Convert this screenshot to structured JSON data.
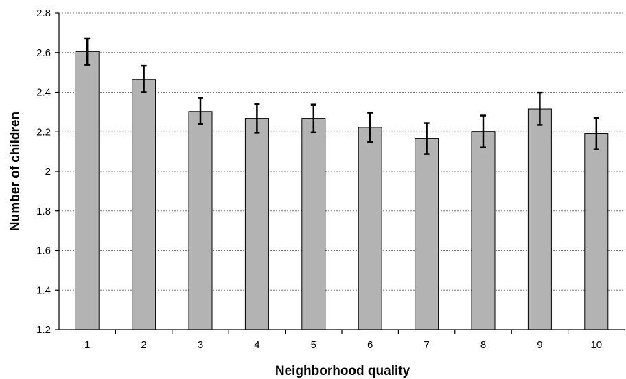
{
  "chart_data": {
    "type": "bar",
    "categories": [
      "1",
      "2",
      "3",
      "4",
      "5",
      "6",
      "7",
      "8",
      "9",
      "10"
    ],
    "values": [
      2.605,
      2.465,
      2.302,
      2.268,
      2.268,
      2.222,
      2.165,
      2.202,
      2.315,
      2.192
    ],
    "error_upper": [
      2.672,
      2.533,
      2.372,
      2.34,
      2.337,
      2.296,
      2.244,
      2.282,
      2.398,
      2.27
    ],
    "error_lower": [
      2.538,
      2.4,
      2.238,
      2.196,
      2.198,
      2.148,
      2.088,
      2.122,
      2.234,
      2.112
    ],
    "xlabel": "Neighborhood quality",
    "ylabel": "Number of children",
    "ylim": [
      1.2,
      2.8
    ],
    "yticks": [
      "1.2",
      "1.4",
      "1.6",
      "1.8",
      "2",
      "2.2",
      "2.4",
      "2.6",
      "2.8"
    ],
    "grid": true,
    "colors": {
      "bar": "#b3b3b3",
      "error_bar": "#000000",
      "gridline": "#7a7a7a"
    }
  }
}
